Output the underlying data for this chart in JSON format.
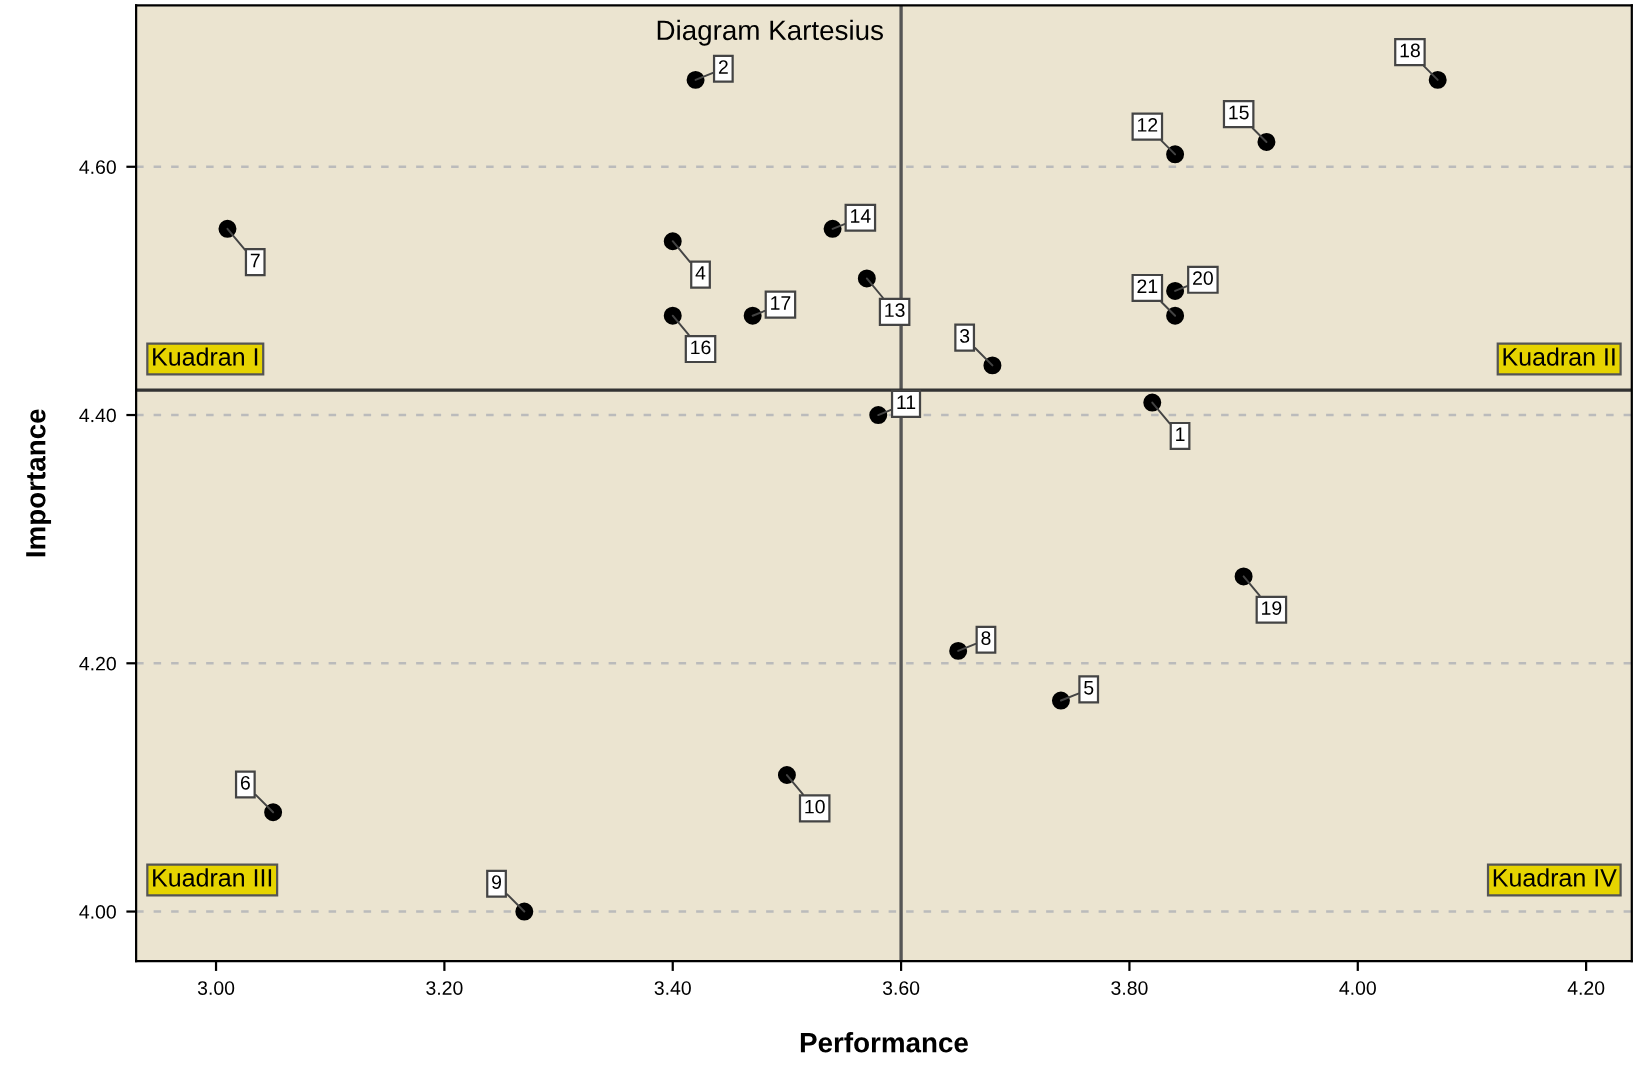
{
  "chart_data": {
    "type": "scatter",
    "title": "Diagram Kartesius",
    "xlabel": "Performance",
    "ylabel": "Importance",
    "x": [
      3.82,
      3.42,
      3.68,
      3.4,
      3.74,
      3.05,
      3.01,
      3.65,
      3.27,
      3.5,
      3.58,
      3.84,
      3.57,
      3.54,
      3.92,
      3.4,
      3.47,
      4.07,
      3.9,
      3.84,
      3.84
    ],
    "series": [
      {
        "color": "#000000",
        "values": [
          4.41,
          4.67,
          4.44,
          4.54,
          4.17,
          4.08,
          4.55,
          4.21,
          4.0,
          4.11,
          4.4,
          4.61,
          4.51,
          4.55,
          4.62,
          4.48,
          4.48,
          4.67,
          4.27,
          4.5,
          4.48
        ]
      }
    ],
    "annotations": [
      {
        "text": "1",
        "x": 3.82,
        "y": 4.41
      },
      {
        "text": "2",
        "x": 3.42,
        "y": 4.67
      },
      {
        "text": "3",
        "x": 3.68,
        "y": 4.44
      },
      {
        "text": "4",
        "x": 3.4,
        "y": 4.54
      },
      {
        "text": "5",
        "x": 3.74,
        "y": 4.17
      },
      {
        "text": "6",
        "x": 3.05,
        "y": 4.08
      },
      {
        "text": "7",
        "x": 3.01,
        "y": 4.55
      },
      {
        "text": "8",
        "x": 3.65,
        "y": 4.21
      },
      {
        "text": "9",
        "x": 3.27,
        "y": 4.0
      },
      {
        "text": "10",
        "x": 3.5,
        "y": 4.11
      },
      {
        "text": "11",
        "x": 3.58,
        "y": 4.4
      },
      {
        "text": "12",
        "x": 3.84,
        "y": 4.61
      },
      {
        "text": "13",
        "x": 3.57,
        "y": 4.51
      },
      {
        "text": "14",
        "x": 3.54,
        "y": 4.55
      },
      {
        "text": "15",
        "x": 3.92,
        "y": 4.62
      },
      {
        "text": "16",
        "x": 3.4,
        "y": 4.48
      },
      {
        "text": "17",
        "x": 3.47,
        "y": 4.48
      },
      {
        "text": "18",
        "x": 4.07,
        "y": 4.67
      },
      {
        "text": "19",
        "x": 3.9,
        "y": 4.27
      },
      {
        "text": "20",
        "x": 3.84,
        "y": 4.5
      },
      {
        "text": "21",
        "x": 3.84,
        "y": 4.48
      },
      "Kuadran I",
      "Kuadran II",
      "Kuadran III",
      "Kuadran IV"
    ],
    "ref_lines": [
      {
        "axis": "x",
        "value": 3.6,
        "color": "#555555"
      },
      {
        "axis": "y",
        "value": 4.42,
        "color": "#333333"
      }
    ],
    "xlim": [
      2.93,
      4.24
    ],
    "ylim": [
      3.96,
      4.73
    ],
    "xticks": [
      {
        "value": 3.0,
        "label": "3.00"
      },
      {
        "value": 3.2,
        "label": "3.20"
      },
      {
        "value": 3.4,
        "label": "3.40"
      },
      {
        "value": 3.6,
        "label": "3.60"
      },
      {
        "value": 3.8,
        "label": "3.80"
      },
      {
        "value": 4.0,
        "label": "4.00"
      },
      {
        "value": 4.2,
        "label": "4.20"
      }
    ],
    "yticks": [
      {
        "value": 4.0,
        "label": "4.00"
      },
      {
        "value": 4.2,
        "label": "4.20"
      },
      {
        "value": 4.4,
        "label": "4.40"
      },
      {
        "value": 4.6,
        "label": "4.60"
      }
    ],
    "grid": "y",
    "marker": "circle"
  }
}
